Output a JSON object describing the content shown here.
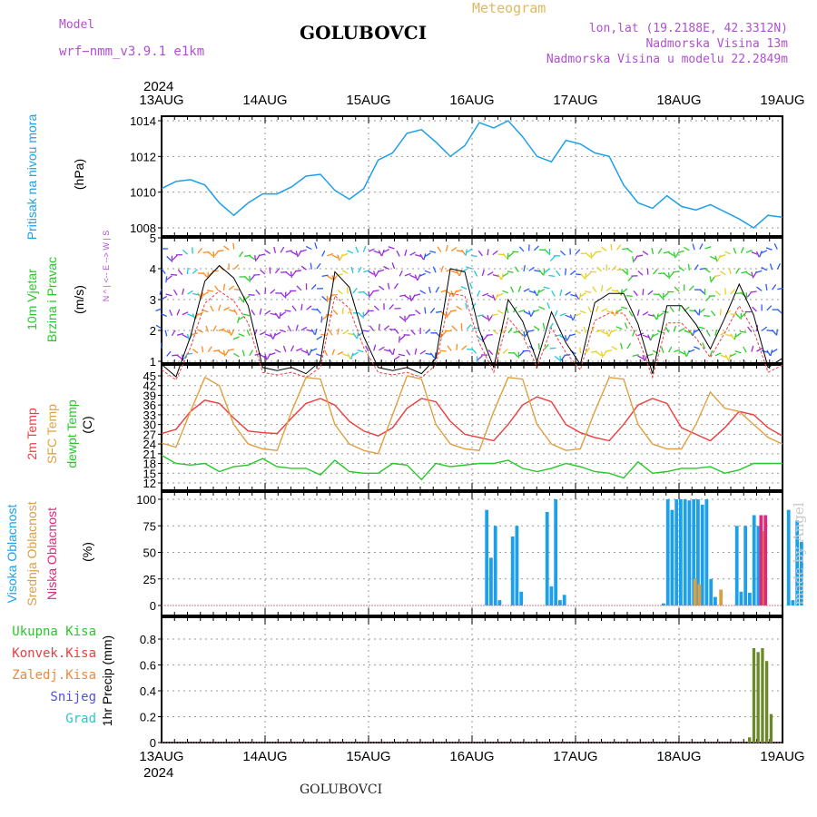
{
  "header": {
    "model_label": "Model",
    "model_name": "wrf−nmm_v3.9.1  e1km",
    "product": "Meteogram",
    "location": "GOLUBOVCI",
    "lonlat": "lon,lat (19.2188E, 42.3312N)",
    "elevation": "Nadmorska Visina 13m",
    "model_elevation": "Nadmorska Visina u modelu 22.2849m",
    "footer_location": "GOLUBOVCI",
    "credit": "made by Angel"
  },
  "colors": {
    "pressure": "#1ea0e8",
    "t2m": "#f03c3c",
    "sfc": "#e0a040",
    "dewpt": "#28c828",
    "high_cloud": "#1ea0e8",
    "mid_cloud": "#d8a048",
    "low_cloud": "#e0287a",
    "total_precip": "#28c828",
    "conv_precip": "#f03c3c",
    "frozen_precip": "#f08838",
    "snow": "#5050e0",
    "hail": "#28c8c8",
    "wind_axis": "#b050d0",
    "header_purple": "#b050d0",
    "header_gold": "#e0b860",
    "credit": "#c8c8c8"
  },
  "chart_data": [
    {
      "type": "line",
      "panel": "pressure",
      "ylabel": [
        "Pritisak na nivou mora",
        "(hPa)"
      ],
      "ylim": [
        1008,
        1015
      ],
      "yticks": [
        1008,
        1010,
        1012,
        1014
      ],
      "grid": true,
      "x_start_day_labels": [
        "13AUG",
        "14AUG",
        "15AUG",
        "16AUG",
        "17AUG",
        "18AUG",
        "19AUG"
      ],
      "year": "2024",
      "hours_per_point": 3,
      "series": [
        {
          "values": [
            1010.2,
            1010.6,
            1010.7,
            1010.4,
            1009.4,
            1008.7,
            1009.4,
            1009.9,
            1009.9,
            1010.3,
            1010.9,
            1011.0,
            1010.1,
            1009.6,
            1010.2,
            1011.8,
            1012.2,
            1013.3,
            1013.5,
            1012.8,
            1012.0,
            1012.6,
            1013.9,
            1013.6,
            1014.0,
            1013.1,
            1012.0,
            1011.7,
            1012.9,
            1012.7,
            1012.2,
            1012.0,
            1010.4,
            1009.4,
            1009.1,
            1009.8,
            1009.2,
            1009.0,
            1009.3,
            1008.9,
            1008.5,
            1008.0,
            1008.7,
            1008.6
          ]
        }
      ]
    },
    {
      "type": "line",
      "panel": "wind",
      "ylabel": [
        "10m Vjetar",
        "Brzina i Pravac",
        "(m/s)"
      ],
      "direction_legend": "N ^ | <-- E --> W | S",
      "ylim": [
        0,
        5
      ],
      "yticks": [
        1,
        2,
        3,
        4,
        5
      ],
      "grid": true,
      "series": [
        {
          "values": [
            0.9,
            0.5,
            1.8,
            3.6,
            4.1,
            3.7,
            2.8,
            0.8,
            0.7,
            0.8,
            0.6,
            1.0,
            3.9,
            3.4,
            1.8,
            0.8,
            0.7,
            0.8,
            0.6,
            1.1,
            4.0,
            3.9,
            2.0,
            0.8,
            3.0,
            2.3,
            1.0,
            2.6,
            1.6,
            0.9,
            2.9,
            3.2,
            3.2,
            2.2,
            0.6,
            2.8,
            2.8,
            2.2,
            1.4,
            2.4,
            3.5,
            2.5,
            0.8,
            1.1
          ]
        }
      ]
    },
    {
      "type": "line",
      "panel": "temperature",
      "ylabel": [
        "2m Temp",
        "SFC Temp",
        "dewpt Temp",
        "(C)"
      ],
      "ylim": [
        12,
        45
      ],
      "yticks": [
        12,
        15,
        18,
        21,
        24,
        27,
        30,
        33,
        36,
        39,
        42,
        45
      ],
      "grid": true,
      "series": [
        {
          "name": "2m Temp",
          "values": [
            27.2,
            28.5,
            34.0,
            37.5,
            36.5,
            32.0,
            28.0,
            27.5,
            27.2,
            32.0,
            36.5,
            38.0,
            36.0,
            31.0,
            28.0,
            26.5,
            29.0,
            35.0,
            38.0,
            37.0,
            31.0,
            27.0,
            26.0,
            25.0,
            30.0,
            36.0,
            38.5,
            37.0,
            30.0,
            27.5,
            26.0,
            25.0,
            30.0,
            36.0,
            38.0,
            36.5,
            29.0,
            27.0,
            25.0,
            29.0,
            34.0,
            33.0,
            29.0,
            26.5
          ]
        },
        {
          "name": "SFC Temp",
          "values": [
            24.3,
            23.0,
            34.0,
            44.5,
            42.0,
            30.0,
            24.0,
            22.5,
            22.0,
            34.0,
            44.5,
            44.0,
            30.0,
            24.0,
            22.0,
            21.0,
            33.0,
            45.0,
            44.0,
            30.0,
            24.0,
            22.5,
            22.0,
            34.0,
            44.5,
            44.0,
            30.0,
            24.0,
            22.0,
            22.5,
            34.0,
            44.5,
            44.0,
            30.0,
            24.0,
            22.5,
            22.5,
            30.0,
            40.0,
            35.0,
            34.0,
            30.0,
            26.0,
            24.0
          ]
        },
        {
          "name": "dewpt Temp",
          "values": [
            20.5,
            18.0,
            17.5,
            18.0,
            15.5,
            17.0,
            17.5,
            19.5,
            17.0,
            16.5,
            16.5,
            14.5,
            19.0,
            15.5,
            15.0,
            15.0,
            18.0,
            17.5,
            13.0,
            18.0,
            17.0,
            17.5,
            18.0,
            18.0,
            19.0,
            16.5,
            15.5,
            16.5,
            18.0,
            17.0,
            15.5,
            15.0,
            13.5,
            18.5,
            15.0,
            15.5,
            16.5,
            16.5,
            17.0,
            15.0,
            16.0,
            18.0,
            18.0,
            18.0
          ]
        }
      ]
    },
    {
      "type": "bar",
      "panel": "clouds",
      "ylabel": [
        "Visoka Oblacnost",
        "Srednja Oblacnost",
        "Niska Oblacnost",
        "(%)"
      ],
      "ylim": [
        0,
        100
      ],
      "yticks": [
        0,
        25,
        50,
        75,
        100
      ],
      "grid": true,
      "series": [
        {
          "name": "Visoka Oblacnost",
          "hour": [
            75,
            76,
            77,
            78,
            81,
            82,
            83,
            89,
            90,
            91,
            92,
            93,
            116,
            117,
            118,
            119,
            120,
            121,
            122,
            123,
            124,
            125,
            126,
            127,
            128,
            133,
            134,
            135,
            136,
            137,
            138,
            139,
            145,
            146,
            147,
            148
          ],
          "values": [
            90,
            45,
            75,
            5,
            65,
            75,
            13,
            88,
            18,
            100,
            5,
            10,
            2,
            100,
            90,
            100,
            100,
            100,
            99,
            100,
            100,
            95,
            100,
            25,
            8,
            75,
            13,
            75,
            12,
            85,
            75,
            13,
            90,
            5,
            80,
            60
          ]
        },
        {
          "name": "Srednja Oblacnost",
          "hour": [
            123,
            124,
            129,
            139
          ],
          "values": [
            25,
            20,
            15,
            70
          ]
        },
        {
          "name": "Niska Oblacnost",
          "hour": [
            138,
            139
          ],
          "values": [
            85,
            85
          ]
        }
      ]
    },
    {
      "type": "bar",
      "panel": "precipitation",
      "ylabel": [
        "1hr Precip (mm)"
      ],
      "ylim": [
        0,
        0.95
      ],
      "yticks": [
        0,
        0.2,
        0.4,
        0.6,
        0.8
      ],
      "grid": true,
      "legend": [
        "Ukupna  Kisa",
        "Konvek.Kisa",
        "Zaledj.Kisa",
        "Snijeg",
        "Grad"
      ],
      "series": [
        {
          "name": "Ukupna  Kisa",
          "hour": [
            136,
            137,
            138,
            139,
            140,
            141
          ],
          "values": [
            0.04,
            0.73,
            0.7,
            0.73,
            0.63,
            0.22
          ]
        }
      ]
    }
  ]
}
